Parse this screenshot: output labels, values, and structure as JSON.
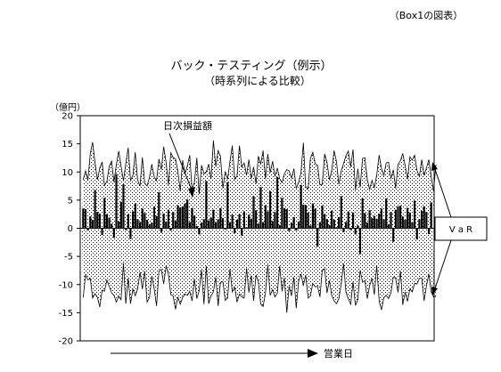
{
  "chart_data": {
    "type": "bar",
    "note": "（Box1の図表）",
    "title": "バック・テスティング（例示）",
    "subtitle": "（時系列による比較）",
    "ylabel": "（億円）",
    "xlabel": "営業日",
    "ylim": [
      -20,
      20
    ],
    "yticks": [
      20,
      15,
      10,
      5,
      0,
      -5,
      -10,
      -15,
      -20
    ],
    "annotations": {
      "bar_label": "日次損益額",
      "var_label": "V a R"
    },
    "series": [
      {
        "type": "bar",
        "values": [
          3.5,
          3.4,
          -0.4,
          2.1,
          1.5,
          6.8,
          2.9,
          2.6,
          -1.2,
          5.4,
          2.5,
          1.9,
          0.8,
          -1.7,
          9.6,
          1.2,
          4.7,
          7.8,
          -0.3,
          2.5,
          -1.9,
          3.0,
          4.4,
          1.6,
          1.1,
          3.5,
          2.7,
          1.5,
          0.7,
          1.0,
          3.9,
          2.2,
          6.4,
          -0.8,
          2.6,
          1.2,
          3.3,
          -0.4,
          2.9,
          1.4,
          4.1,
          3.7,
          3.9,
          4.4,
          5.1,
          1.1,
          3.6,
          2.3,
          0.4,
          -1.1,
          1.0,
          1.6,
          8.4,
          1.4,
          1.9,
          3.3,
          1.1,
          1.6,
          3.6,
          1.8,
          -0.2,
          8.2,
          1.1,
          2.4,
          -0.9,
          1.5,
          2.5,
          -1.3,
          3.0,
          0.2,
          2.4,
          1.7,
          5.7,
          3.2,
          0.8,
          7.3,
          1.1,
          4.1,
          3.0,
          6.6,
          1.3,
          2.9,
          9.1,
          0.6,
          5.4,
          3.6,
          3.4,
          -0.5,
          1.0,
          2.0,
          -0.4,
          1.2,
          7.7,
          4.2,
          4.1,
          2.8,
          0.5,
          4.4,
          3.5,
          -3.3,
          1.1,
          4.0,
          2.5,
          1.6,
          0.6,
          3.1,
          1.5,
          0.2,
          2.0,
          5.7,
          -0.7,
          1.1,
          3.0,
          -0.3,
          2.8,
          -1.1,
          0.5,
          -4.6,
          5.3,
          2.7,
          1.0,
          3.2,
          1.8,
          2.2,
          1.7,
          2.6,
          3.5,
          1.6,
          5.3,
          0.7,
          2.9,
          -2.4,
          3.3,
          3.9,
          4.0,
          2.1,
          1.5,
          3.6,
          2.8,
          1.1,
          4.9,
          -2.0,
          1.6,
          3.1,
          3.9,
          2.9,
          -1.0,
          4.6
        ]
      },
      {
        "type": "line",
        "values": [
          8.6,
          10.2,
          8.6,
          13.3,
          15.3,
          11.6,
          8.6,
          10.7,
          11.8,
          7.6,
          8.3,
          11.0,
          11.9,
          8.2,
          11.3,
          13.7,
          11.1,
          8.4,
          11.5,
          14.3,
          8.5,
          9.4,
          13.5,
          8.6,
          7.5,
          12.6,
          8.0,
          7.5,
          9.1,
          11.4,
          9.1,
          8.5,
          12.3,
          10.4,
          14.5,
          11.8,
          7.7,
          13.4,
          12.6,
          12.3,
          10.2,
          6.6,
          12.1,
          9.7,
          11.1,
          13.0,
          6.8,
          8.2,
          12.5,
          6.1,
          11.2,
          9.7,
          10.0,
          11.4,
          8.7,
          15.6,
          11.0,
          13.8,
          12.8,
          7.1,
          10.1,
          8.7,
          11.9,
          14.7,
          8.7,
          9.3,
          14.7,
          10.9,
          11.6,
          9.4,
          12.2,
          8.8,
          10.9,
          7.9,
          12.8,
          11.4,
          13.8,
          8.8,
          13.2,
          9.9,
          11.9,
          9.2,
          10.7,
          8.8,
          8.1,
          9.7,
          10.4,
          10.2,
          8.9,
          10.6,
          7.1,
          8.2,
          9.9,
          15.2,
          7.4,
          7.0,
          12.4,
          13.5,
          11.5,
          11.2,
          7.7,
          7.8,
          13.2,
          11.7,
          8.6,
          10.2,
          13.8,
          11.8,
          7.8,
          10.2,
          11.5,
          12.9,
          13.7,
          10.9,
          14.0,
          6.8,
          10.6,
          7.3,
          12.4,
          12.5,
          8.7,
          6.9,
          8.5,
          7.2,
          9.5,
          13.0,
          10.6,
          9.4,
          11.6,
          11.7,
          8.8,
          10.4,
          7.1,
          11.4,
          12.0,
          13.3,
          11.1,
          8.7,
          12.7,
          12.1,
          13.0,
          10.3,
          9.2,
          12.2,
          9.4,
          10.7,
          12.2,
          9.3,
          6.6,
          11.3
        ]
      },
      {
        "type": "line",
        "values": [
          -12.3,
          -8.3,
          -9.2,
          -8.9,
          -12.4,
          -11.6,
          -12.3,
          -14.0,
          -11.0,
          -11.2,
          -9.2,
          -10.3,
          -11.5,
          -11.9,
          -13.1,
          -12.1,
          -12.7,
          -6.2,
          -13.4,
          -8.9,
          -13.4,
          -10.8,
          -12.0,
          -10.8,
          -7.8,
          -10.8,
          -7.6,
          -13.1,
          -12.3,
          -8.5,
          -10.8,
          -13.8,
          -7.6,
          -7.3,
          -9.9,
          -6.7,
          -8.1,
          -11.8,
          -12.0,
          -14.4,
          -12.2,
          -13.5,
          -12.3,
          -11.7,
          -11.9,
          -11.2,
          -12.9,
          -9.0,
          -12.5,
          -11.1,
          -7.4,
          -13.5,
          -6.7,
          -13.4,
          -12.0,
          -11.3,
          -8.7,
          -13.8,
          -9.6,
          -9.5,
          -12.8,
          -12.4,
          -7.2,
          -11.3,
          -10.5,
          -13.1,
          -11.7,
          -12.2,
          -12.4,
          -7.1,
          -11.4,
          -8.4,
          -12.9,
          -8.3,
          -9.5,
          -13.5,
          -13.9,
          -11.5,
          -6.5,
          -11.9,
          -10.9,
          -12.2,
          -11.5,
          -6.7,
          -11.2,
          -8.8,
          -15.0,
          -10.3,
          -12.0,
          -8.7,
          -14.2,
          -9.4,
          -8.1,
          -10.2,
          -8.3,
          -12.4,
          -12.0,
          -9.8,
          -10.4,
          -10.3,
          -12.2,
          -7.5,
          -7.2,
          -11.5,
          -9.3,
          -11.9,
          -12.9,
          -13.4,
          -12.5,
          -9.9,
          -6.3,
          -11.4,
          -12.5,
          -13.5,
          -9.5,
          -13.7,
          -12.7,
          -7.5,
          -9.6,
          -9.3,
          -12.5,
          -10.2,
          -8.9,
          -11.8,
          -6.6,
          -12.9,
          -14.5,
          -12.3,
          -11.9,
          -12.5,
          -11.5,
          -8.7,
          -8.8,
          -11.4,
          -7.6,
          -13.6,
          -11.3,
          -13.0,
          -10.8,
          -11.3,
          -9.8,
          -9.9,
          -8.9,
          -8.8,
          -12.9,
          -10.2,
          -8.1,
          -11.3,
          -12.2,
          -12.1
        ]
      }
    ]
  }
}
